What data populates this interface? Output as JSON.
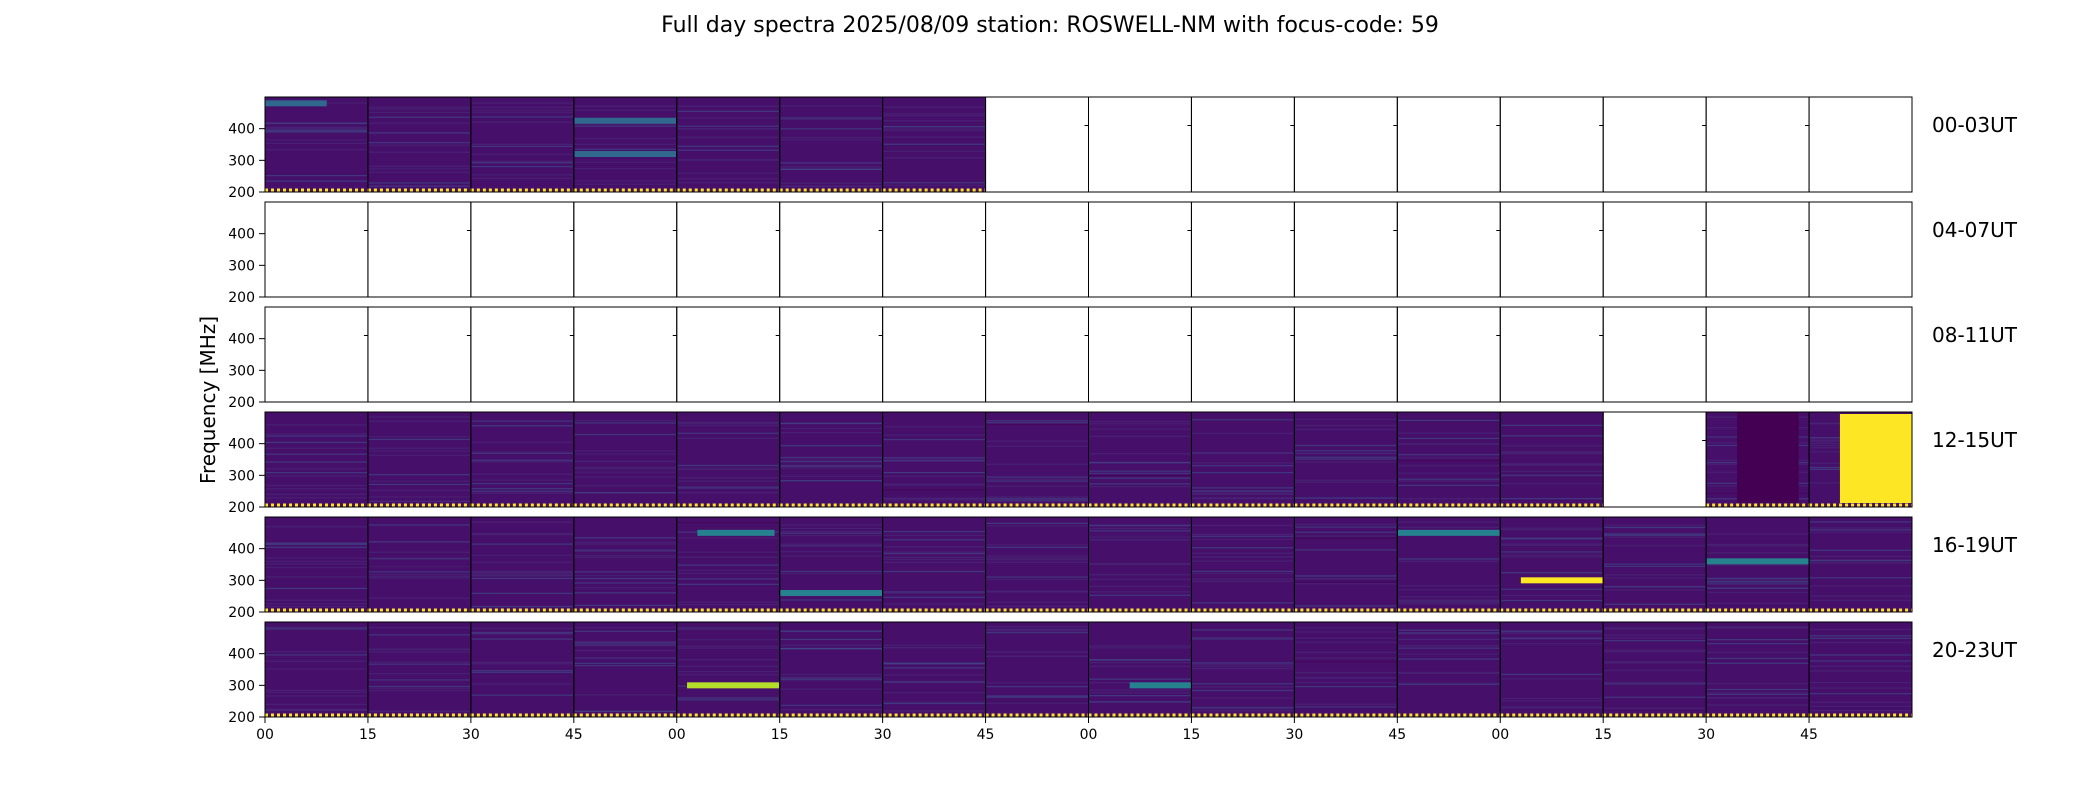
{
  "chart_data": {
    "type": "heatmap",
    "title": "Full day spectra 2025/08/09 station: ROSWELL-NM with focus-code: 59",
    "ylabel": "Frequency [MHz]",
    "ylim": [
      200,
      500
    ],
    "y_ticks": [
      "200",
      "300",
      "400"
    ],
    "x_ticks": [
      "00",
      "15",
      "30",
      "45",
      "00",
      "15",
      "30",
      "45",
      "00",
      "15",
      "30",
      "45",
      "00",
      "15",
      "30",
      "45"
    ],
    "colormap": [
      "#440154",
      "#482878",
      "#3e4989",
      "#31688e",
      "#26828e",
      "#1f9e89",
      "#35b779",
      "#6ece58",
      "#b5de2b",
      "#fde725"
    ],
    "row_labels": [
      "00-03UT",
      "04-07UT",
      "08-11UT",
      "12-15UT",
      "16-19UT",
      "20-23UT"
    ],
    "panels_per_row": 16,
    "panel_status": [
      [
        "data",
        "data",
        "data",
        "data",
        "data",
        "data",
        "data",
        "empty",
        "empty",
        "empty",
        "empty",
        "empty",
        "empty",
        "empty",
        "empty",
        "empty"
      ],
      [
        "empty",
        "empty",
        "empty",
        "empty",
        "empty",
        "empty",
        "empty",
        "empty",
        "empty",
        "empty",
        "empty",
        "empty",
        "empty",
        "empty",
        "empty",
        "empty"
      ],
      [
        "empty",
        "empty",
        "empty",
        "empty",
        "empty",
        "empty",
        "empty",
        "empty",
        "empty",
        "empty",
        "empty",
        "empty",
        "empty",
        "empty",
        "empty",
        "empty"
      ],
      [
        "data",
        "data",
        "data",
        "data",
        "data",
        "data",
        "data",
        "data",
        "data",
        "data",
        "data",
        "data",
        "data",
        "empty",
        "data",
        "data"
      ],
      [
        "data",
        "data",
        "data",
        "data",
        "data",
        "data",
        "data",
        "data",
        "data",
        "data",
        "data",
        "data",
        "data",
        "data",
        "data",
        "data"
      ],
      [
        "data",
        "data",
        "data",
        "data",
        "data",
        "data",
        "data",
        "data",
        "data",
        "data",
        "data",
        "data",
        "data",
        "data",
        "data",
        "data"
      ]
    ],
    "features": [
      {
        "row": 0,
        "panel": 3,
        "freq_mhz": 425,
        "intensity": 0.3,
        "from": 0,
        "to": 1
      },
      {
        "row": 0,
        "panel": 3,
        "freq_mhz": 320,
        "intensity": 0.3,
        "from": 0,
        "to": 1
      },
      {
        "row": 0,
        "panel": 0,
        "freq_mhz": 480,
        "intensity": 0.35,
        "from": 0,
        "to": 0.6
      },
      {
        "row": 3,
        "panel": 15,
        "freq_mhz": 350,
        "intensity": 1.0,
        "from": 0.3,
        "to": 1
      },
      {
        "row": 3,
        "panel": 14,
        "freq_mhz": 320,
        "intensity": 0.05,
        "from": 0.3,
        "to": 0.9
      },
      {
        "row": 4,
        "panel": 12,
        "freq_mhz": 300,
        "intensity": 1.0,
        "from": 0.2,
        "to": 1
      },
      {
        "row": 4,
        "panel": 5,
        "freq_mhz": 260,
        "intensity": 0.45,
        "from": 0,
        "to": 1
      },
      {
        "row": 4,
        "panel": 4,
        "freq_mhz": 450,
        "intensity": 0.4,
        "from": 0.2,
        "to": 0.95
      },
      {
        "row": 4,
        "panel": 11,
        "freq_mhz": 450,
        "intensity": 0.4,
        "from": 0,
        "to": 1
      },
      {
        "row": 4,
        "panel": 14,
        "freq_mhz": 360,
        "intensity": 0.4,
        "from": 0,
        "to": 1
      },
      {
        "row": 5,
        "panel": 4,
        "freq_mhz": 300,
        "intensity": 0.92,
        "from": 0.1,
        "to": 1
      },
      {
        "row": 5,
        "panel": 8,
        "freq_mhz": 300,
        "intensity": 0.4,
        "from": 0.4,
        "to": 1
      }
    ]
  }
}
